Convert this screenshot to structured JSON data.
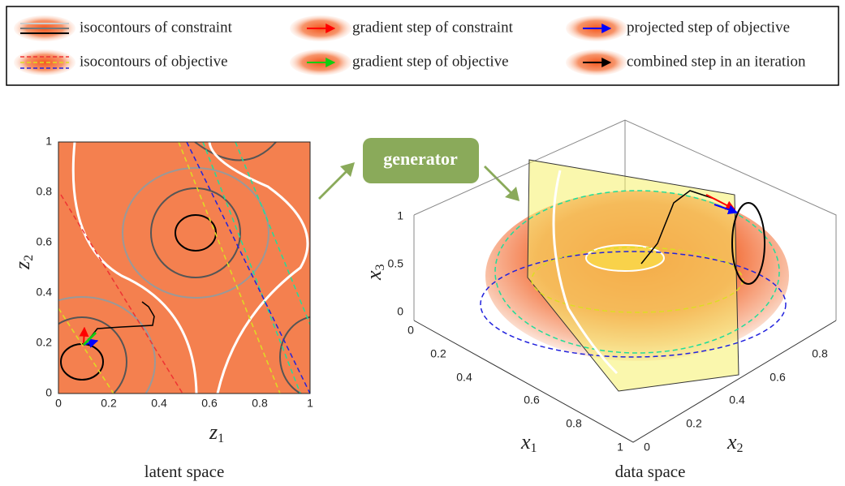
{
  "legend": {
    "items": [
      {
        "label": "isocontours of constraint"
      },
      {
        "label": "gradient step of constraint"
      },
      {
        "label": "projected step of objective"
      },
      {
        "label": "isocontours of objective"
      },
      {
        "label": "gradient step of objective"
      },
      {
        "label": "combined step in an iteration"
      }
    ]
  },
  "latent_plot": {
    "x_ticks": [
      "0",
      "0.2",
      "0.4",
      "0.6",
      "0.8",
      "1"
    ],
    "y_ticks": [
      "0",
      "0.2",
      "0.4",
      "0.6",
      "0.8",
      "1"
    ],
    "x_label": {
      "symbol": "z",
      "subscript": "1"
    },
    "y_label": {
      "symbol": "z",
      "subscript": "2"
    },
    "caption": "latent space"
  },
  "generator": {
    "label": "generator"
  },
  "data_plot": {
    "x3_ticks": [
      "0",
      "0.5",
      "1"
    ],
    "x1_ticks": [
      "0",
      "0.2",
      "0.4",
      "0.6",
      "0.8",
      "1"
    ],
    "x2_ticks": [
      "0",
      "0.2",
      "0.4",
      "0.6",
      "0.8"
    ],
    "x1_label": {
      "symbol": "x",
      "subscript": "1"
    },
    "x2_label": {
      "symbol": "x",
      "subscript": "2"
    },
    "x3_label": {
      "symbol": "x",
      "subscript": "3"
    },
    "caption": "data space"
  }
}
